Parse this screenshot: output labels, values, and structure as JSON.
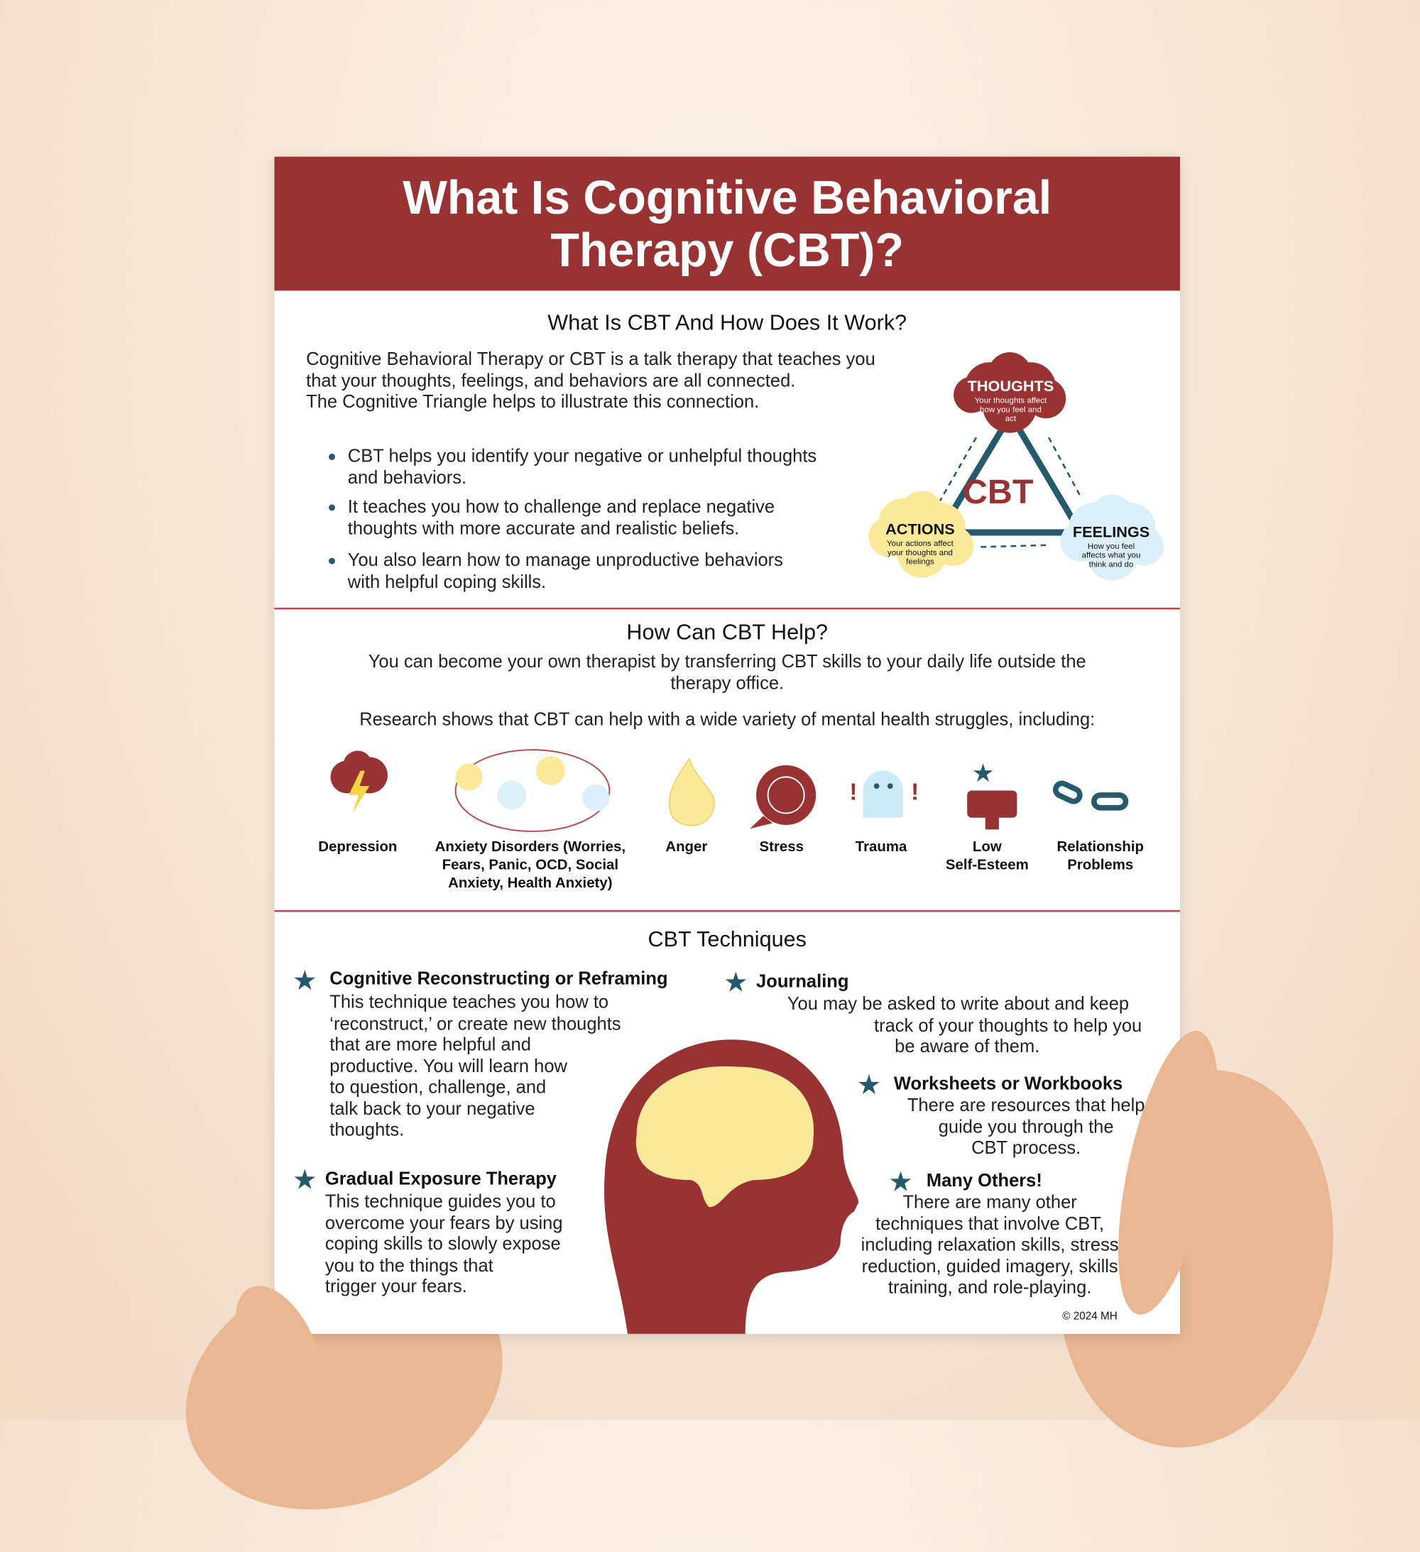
{
  "title": {
    "line1": "What Is Cognitive Behavioral",
    "line2": "Therapy (CBT)?"
  },
  "section1": {
    "heading": "What Is CBT And How Does It Work?",
    "intro": [
      "Cognitive Behavioral Therapy or CBT is a talk therapy that teaches you",
      "that your thoughts, feelings, and behaviors are all connected.",
      "The Cognitive Triangle helps to illustrate this connection."
    ],
    "bullets": [
      [
        "CBT helps you identify your negative or unhelpful thoughts",
        "and behaviors."
      ],
      [
        "It teaches you how to challenge and replace negative",
        "thoughts with more accurate and realistic beliefs."
      ],
      [
        "You also learn how to manage unproductive behaviors",
        "with helpful coping skills."
      ]
    ],
    "triangle": {
      "center": "CBT",
      "thoughts": {
        "title": "THOUGHTS",
        "desc": [
          "Your thoughts affect",
          "how you feel and",
          "act"
        ]
      },
      "actions": {
        "title": "ACTIONS",
        "desc": [
          "Your actions affect",
          "your thoughts and",
          "feelings"
        ]
      },
      "feelings": {
        "title": "FEELINGS",
        "desc": [
          "How you feel",
          "affects what you",
          "think and do"
        ]
      }
    }
  },
  "section2": {
    "heading": "How Can CBT Help?",
    "p1": [
      "You can become your own therapist by transferring CBT skills to your daily life outside the",
      "therapy office."
    ],
    "p2": "Research shows that CBT can help with a wide variety of mental health struggles, including:",
    "conditions": [
      {
        "label": [
          "Depression"
        ],
        "icon": "storm-cloud"
      },
      {
        "label": [
          "Anxiety Disorders (Worries,",
          "Fears, Panic, OCD, Social",
          "Anxiety, Health Anxiety)"
        ],
        "icon": "tangled-thoughts"
      },
      {
        "label": [
          "Anger"
        ],
        "icon": "fire"
      },
      {
        "label": [
          "Stress"
        ],
        "icon": "scribble-bubble"
      },
      {
        "label": [
          "Trauma"
        ],
        "icon": "ghost"
      },
      {
        "label": [
          "Low",
          "Self-Esteem"
        ],
        "icon": "thumbs-down"
      },
      {
        "label": [
          "Relationship",
          "Problems"
        ],
        "icon": "broken-chain"
      }
    ]
  },
  "section3": {
    "heading": "CBT Techniques",
    "techniques": [
      {
        "title": "Cognitive Reconstructing or Reframing",
        "desc": [
          "This technique teaches you how to",
          "‘reconstruct,’ or create new thoughts",
          "that are more helpful and",
          "productive.  You will learn how",
          "to question, challenge, and",
          "talk back to your negative",
          "thoughts."
        ]
      },
      {
        "title": "Gradual Exposure Therapy",
        "desc": [
          "This technique guides you to",
          "overcome your fears by using",
          "coping skills to slowly expose",
          "you to the things that",
          "trigger your fears."
        ]
      },
      {
        "title": "Journaling",
        "desc": [
          "You may be asked to write about and keep",
          "track of your thoughts to help you",
          "be aware of them."
        ]
      },
      {
        "title": "Worksheets or Workbooks",
        "desc": [
          "There are resources that help",
          "guide you through the",
          "CBT process."
        ]
      },
      {
        "title": "Many Others!",
        "desc": [
          "There are many other",
          "techniques that involve CBT,",
          "including relaxation skills, stress",
          "reduction, guided imagery, skills",
          "training, and role-playing."
        ]
      }
    ]
  },
  "copyright": "© 2024 MH",
  "colors": {
    "brand": "#993333",
    "teal": "#245a6b",
    "yellow": "#fbe99a",
    "lightblue": "#dcf0fb"
  }
}
